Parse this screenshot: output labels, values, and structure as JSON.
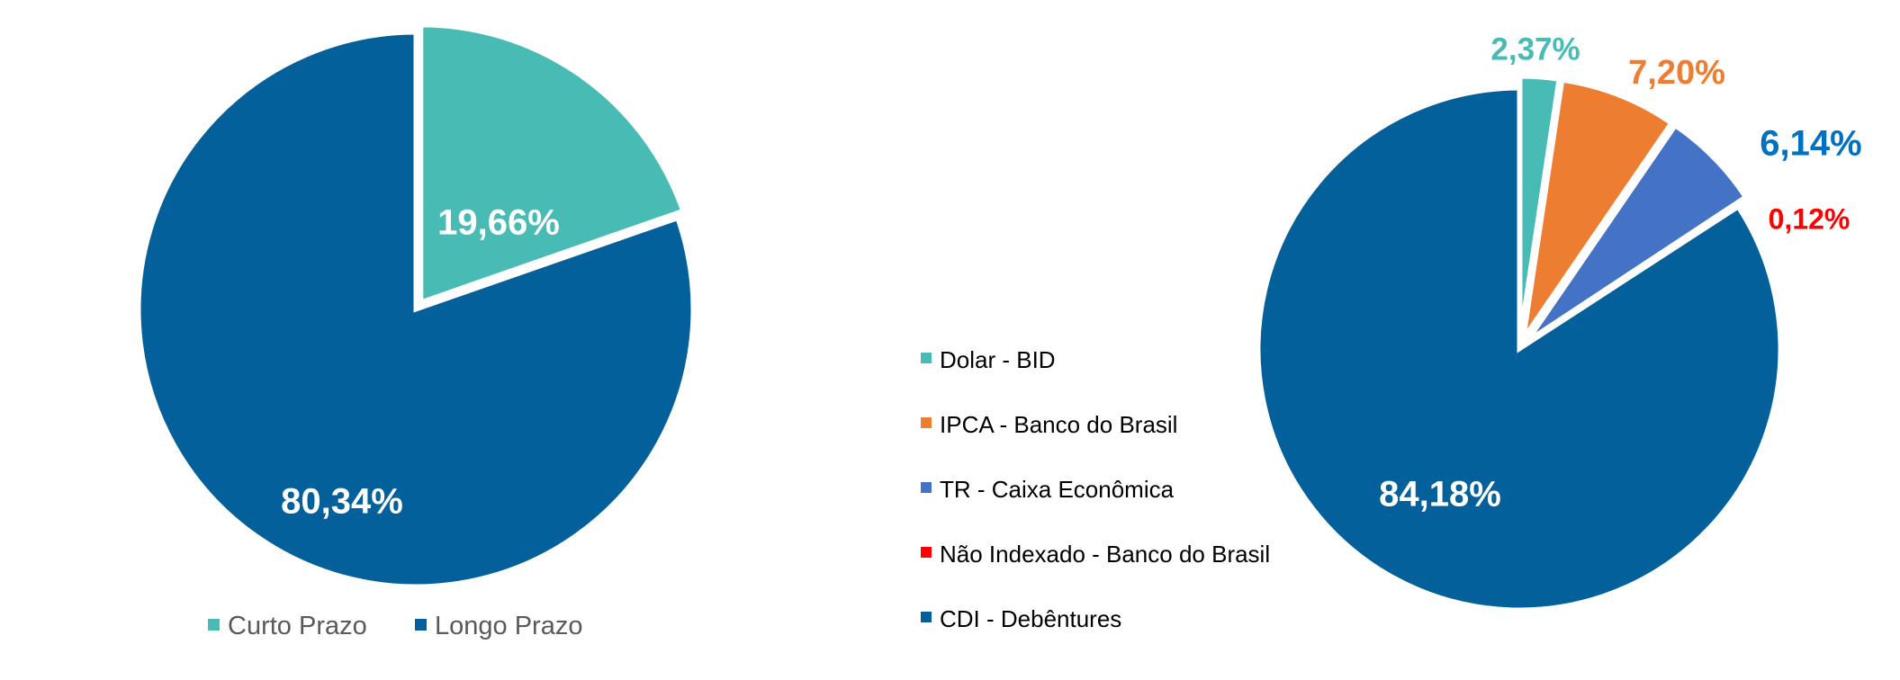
{
  "chart_data": [
    {
      "type": "pie",
      "slices": [
        {
          "label": "Curto Prazo",
          "value": 19.66,
          "display": "19,66%",
          "color": "#48BBB4",
          "label_color": "#FFFFFF"
        },
        {
          "label": "Longo Prazo",
          "value": 80.34,
          "display": "80,34%",
          "color": "#03609A",
          "label_color": "#FFFFFF"
        }
      ],
      "legend": {
        "position": "bottom"
      }
    },
    {
      "type": "pie",
      "slices": [
        {
          "label": "Dolar - BID",
          "value": 2.37,
          "display": "2,37%",
          "color": "#48BBB4",
          "label_color": "#48BBB4"
        },
        {
          "label": "IPCA - Banco do Brasil",
          "value": 7.2,
          "display": "7,20%",
          "color": "#ED7D31",
          "label_color": "#ED7D31"
        },
        {
          "label": "TR - Caixa Econômica",
          "value": 6.14,
          "display": "6,14%",
          "color": "#4472C4",
          "label_color": "#0070C0"
        },
        {
          "label": "Não Indexado - Banco do Brasil",
          "value": 0.12,
          "display": "0,12%",
          "color": "#FF0000",
          "label_color": "#FF0000"
        },
        {
          "label": "CDI - Debêntures",
          "value": 84.18,
          "display": "84,18%",
          "color": "#03609A",
          "label_color": "#FFFFFF"
        }
      ],
      "legend": {
        "position": "left"
      }
    }
  ]
}
